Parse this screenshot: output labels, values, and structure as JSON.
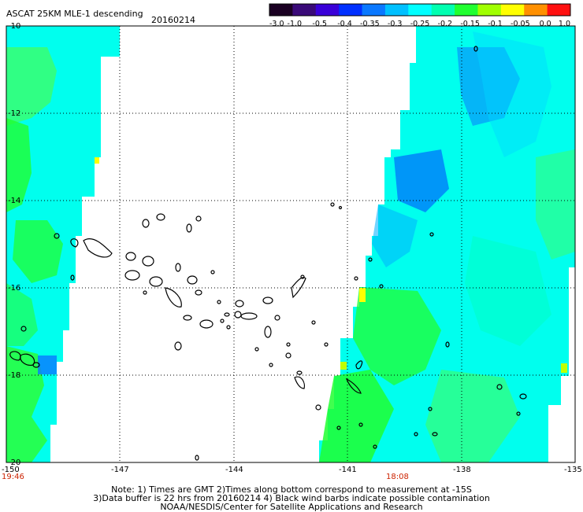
{
  "header": {
    "title": "ASCAT 25KM MLE-1 descending",
    "date": "20160214"
  },
  "colorbar": {
    "labels": [
      "-3.0",
      "-1.0",
      "-0.5",
      "-0.4",
      "-0.35",
      "-0.3",
      "-0.25",
      "-0.2",
      "-0.15",
      "-0.1",
      "-0.05",
      "0.0",
      "1.0"
    ],
    "colors": [
      "#1a0022",
      "#3a0a78",
      "#3a00d8",
      "#0030ff",
      "#0a78ff",
      "#00c0ff",
      "#00ffff",
      "#00ffb0",
      "#20ff30",
      "#a0ff00",
      "#ffff00",
      "#ff9000",
      "#ff1010"
    ]
  },
  "axes": {
    "lat_labels": [
      "-10",
      "-12",
      "-14",
      "-16",
      "-18",
      "-20"
    ],
    "lon_labels": [
      "-150",
      "-147",
      "-144",
      "-141",
      "-138",
      "-135"
    ]
  },
  "times": {
    "left": "19:46",
    "middle": "18:08"
  },
  "notes": {
    "line1": "Note: 1) Times are GMT 2)Times along bottom correspond to measurement at -15S",
    "line2": "3)Data buffer is 22 hrs from 20160214 4) Black wind barbs indicate possible contamination",
    "line3": "NOAA/NESDIS/Center for Satellite Applications and Research"
  }
}
